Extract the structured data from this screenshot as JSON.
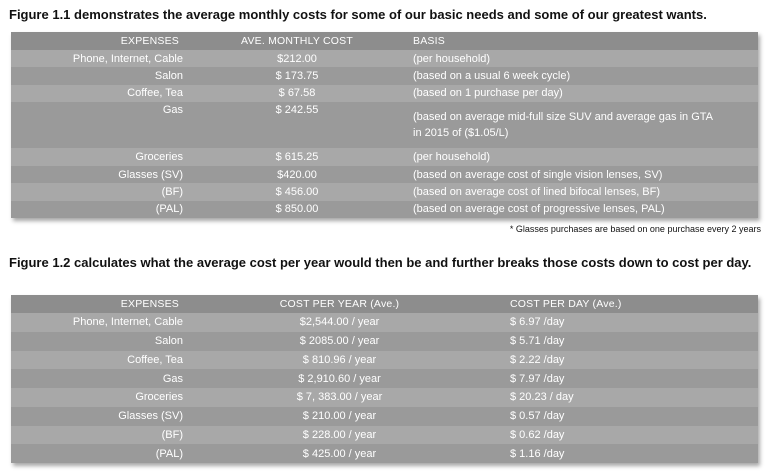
{
  "figure1": {
    "caption": "Figure 1.1 demonstrates the average monthly costs for some of our basic needs and some of our greatest wants.",
    "headers": [
      "EXPENSES",
      "AVE. MONTHLY COST",
      "BASIS"
    ],
    "rows": [
      {
        "expense": "Phone, Internet, Cable",
        "cost": "$212.00",
        "basis": "(per household)"
      },
      {
        "expense": "Salon",
        "cost": "$ 173.75",
        "basis": "(based on a usual 6 week cycle)"
      },
      {
        "expense": "Coffee, Tea",
        "cost": "$ 67.58",
        "basis": "(based on 1 purchase per day)"
      },
      {
        "expense": "Gas",
        "cost": "$ 242.55",
        "basis": "(based on average mid-full size SUV and average gas in GTA",
        "basis_line2": "in 2015 of ($1.05/L)"
      },
      {
        "expense": "Groceries",
        "cost": "$ 615.25",
        "basis": "(per household)"
      },
      {
        "expense": "Glasses (SV)",
        "cost": "$420.00",
        "basis": "(based on average cost of single vision lenses, SV)"
      },
      {
        "expense": "(BF)",
        "cost": "$ 456.00",
        "basis": "(based on average cost of lined bifocal lenses, BF)"
      },
      {
        "expense": "(PAL)",
        "cost": "$ 850.00",
        "basis": "(based on average cost of progressive lenses, PAL)"
      }
    ],
    "note": "* Glasses purchases are based on one purchase every 2 years"
  },
  "figure2": {
    "caption": "Figure 1.2 calculates what the average cost per year would then be and further breaks those costs down to cost per day.",
    "headers": [
      "EXPENSES",
      "COST PER YEAR (Ave.)",
      "COST PER DAY (Ave.)"
    ],
    "rows": [
      {
        "expense": "Phone, Internet, Cable",
        "year": "$2,544.00 / year",
        "day": "$ 6.97 /day"
      },
      {
        "expense": "Salon",
        "year": "$ 2085.00 / year",
        "day": "$ 5.71 /day"
      },
      {
        "expense": "Coffee, Tea",
        "year": "$ 810.96 / year",
        "day": "$ 2.22 /day"
      },
      {
        "expense": "Gas",
        "year": "$ 2,910.60 / year",
        "day": "$ 7.97 /day"
      },
      {
        "expense": "Groceries",
        "year": "$ 7, 383.00 / year",
        "day": "$ 20.23 / day"
      },
      {
        "expense": "Glasses (SV)",
        "year": "$ 210.00 / year",
        "day": "$ 0.57 /day"
      },
      {
        "expense": "(BF)",
        "year": "$ 228.00 / year",
        "day": "$ 0.62 /day"
      },
      {
        "expense": "(PAL)",
        "year": "$ 425.00 / year",
        "day": "$ 1.16 /day"
      }
    ]
  },
  "colors": {
    "header_bg": "#8d8d8d",
    "row_light": "#a8a8a8",
    "row_dark": "#9a9a9a",
    "text": "#ffffff"
  }
}
